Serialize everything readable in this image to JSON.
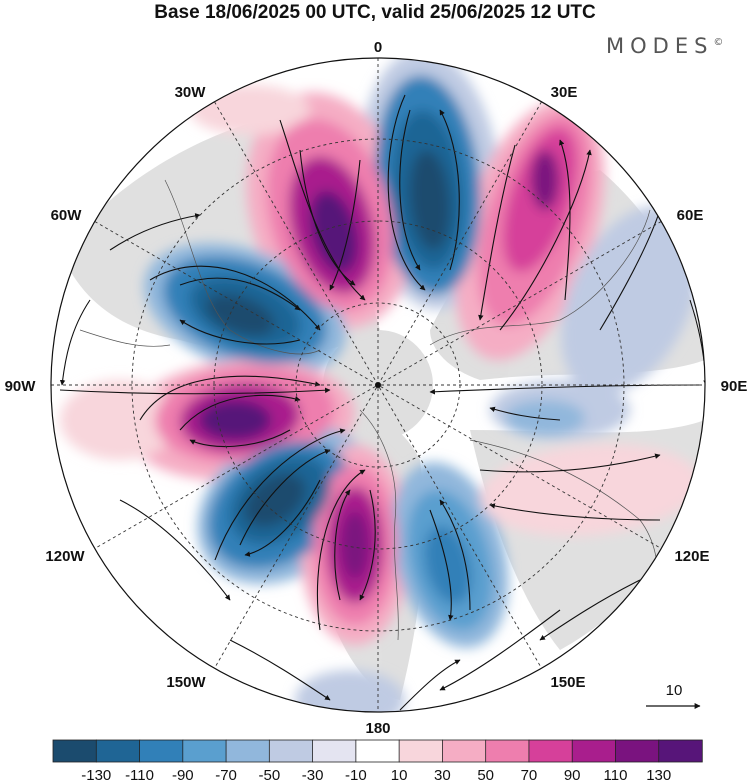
{
  "title": "Base 18/06/2025 00 UTC, valid 25/06/2025 12 UTC",
  "brand": "MODES",
  "brand_mark": "©",
  "longitude_labels": {
    "lon0": "0",
    "lon30e": "30E",
    "lon60e": "60E",
    "lon90e": "90E",
    "lon120e": "120E",
    "lon150e": "150E",
    "lon180": "180",
    "lon150w": "150W",
    "lon120w": "120W",
    "lon90w": "90W",
    "lon60w": "60W",
    "lon30w": "30W"
  },
  "reference_vector": {
    "label": "10"
  },
  "colorbar": {
    "colors": [
      "#1b4b6e",
      "#1f6595",
      "#3180b8",
      "#5a9fcf",
      "#91b7dc",
      "#bfcbe3",
      "#e4e4f1",
      "#ffffff",
      "#f8d6dc",
      "#f5adc4",
      "#ee7eae",
      "#d6409a",
      "#a91e8d",
      "#7a137f",
      "#571579"
    ],
    "ticks": [
      "-130",
      "-110",
      "-90",
      "-70",
      "-50",
      "-30",
      "-10",
      "10",
      "30",
      "50",
      "70",
      "90",
      "110",
      "130"
    ]
  },
  "colors": {
    "background": "#ffffff",
    "land_fill": "#d9d9d9",
    "graticule": "#333333",
    "streamline": "#111111"
  }
}
